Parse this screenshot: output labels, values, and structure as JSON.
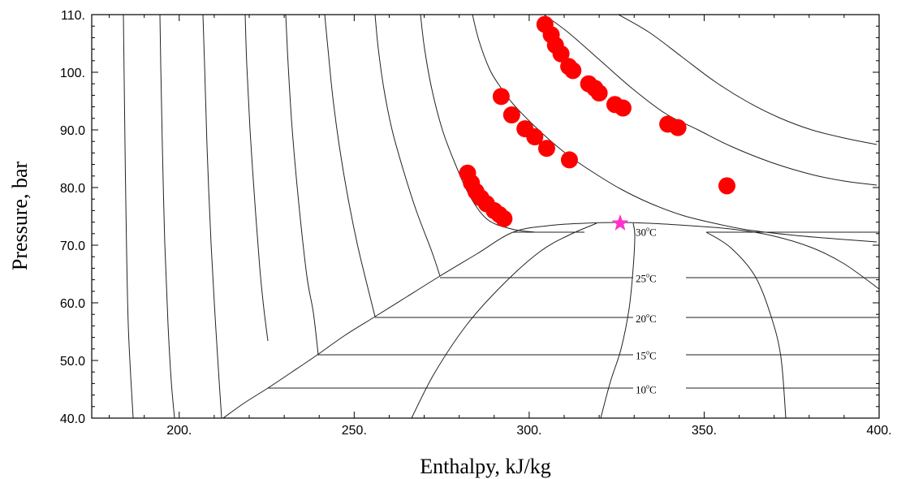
{
  "chart_data": {
    "type": "scatter",
    "title": "",
    "xlabel": "Enthalpy, kJ/kg",
    "ylabel": "Pressure, bar",
    "xlim": [
      175,
      400
    ],
    "ylim": [
      40,
      110
    ],
    "x_ticks": [
      {
        "value": 200,
        "label": "200."
      },
      {
        "value": 250,
        "label": "250."
      },
      {
        "value": 300,
        "label": "300."
      },
      {
        "value": 350,
        "label": "350."
      },
      {
        "value": 400,
        "label": "400."
      }
    ],
    "y_ticks": [
      {
        "value": 40,
        "label": "40.0"
      },
      {
        "value": 50,
        "label": "50.0"
      },
      {
        "value": 60,
        "label": "60.0"
      },
      {
        "value": 70,
        "label": "70.0"
      },
      {
        "value": 80,
        "label": "80.0"
      },
      {
        "value": 90,
        "label": "90.0"
      },
      {
        "value": 100,
        "label": "100."
      },
      {
        "value": 110,
        "label": "110."
      }
    ],
    "points_color": "#ff0000",
    "critical_point_color": "#ff33cc",
    "critical_point": {
      "x": 326,
      "y": 73.8
    },
    "isotherm_labels": [
      {
        "text": "30",
        "unit": "C",
        "y": 72.3
      },
      {
        "text": "25",
        "unit": "C",
        "y": 64.3
      },
      {
        "text": "20",
        "unit": "C",
        "y": 57.3
      },
      {
        "text": "15",
        "unit": "C",
        "y": 50.9
      },
      {
        "text": "10",
        "unit": "C",
        "y": 45.0
      }
    ],
    "series": [
      {
        "values": [
          {
            "x": 304.5,
            "y": 108.3
          },
          {
            "x": 306.3,
            "y": 106.5
          },
          {
            "x": 307.5,
            "y": 104.7
          },
          {
            "x": 309.1,
            "y": 103.2
          },
          {
            "x": 311.3,
            "y": 101.0
          },
          {
            "x": 312.5,
            "y": 100.3
          },
          {
            "x": 317.0,
            "y": 98.0
          },
          {
            "x": 318.8,
            "y": 97.2
          },
          {
            "x": 320.0,
            "y": 96.4
          },
          {
            "x": 324.5,
            "y": 94.4
          },
          {
            "x": 326.8,
            "y": 93.8
          },
          {
            "x": 339.6,
            "y": 91.0
          },
          {
            "x": 342.5,
            "y": 90.4
          }
        ]
      },
      {
        "values": [
          {
            "x": 292.0,
            "y": 95.8
          },
          {
            "x": 295.0,
            "y": 92.6
          },
          {
            "x": 298.8,
            "y": 90.2
          },
          {
            "x": 301.6,
            "y": 88.8
          },
          {
            "x": 305.0,
            "y": 86.8
          },
          {
            "x": 311.5,
            "y": 84.8
          },
          {
            "x": 356.5,
            "y": 80.3
          }
        ]
      },
      {
        "values": [
          {
            "x": 282.4,
            "y": 82.5
          },
          {
            "x": 283.5,
            "y": 80.8
          },
          {
            "x": 284.8,
            "y": 79.3
          },
          {
            "x": 286.2,
            "y": 78.2
          },
          {
            "x": 287.8,
            "y": 77.2
          },
          {
            "x": 290.0,
            "y": 76.0
          },
          {
            "x": 291.5,
            "y": 75.3
          },
          {
            "x": 292.8,
            "y": 74.6
          }
        ]
      }
    ],
    "isentropes": [
      [
        [
          152,
          18
        ],
        [
          153,
          100
        ],
        [
          155,
          250
        ],
        [
          158,
          400
        ],
        [
          164,
          515
        ]
      ],
      [
        [
          197,
          18
        ],
        [
          198,
          80
        ],
        [
          200,
          180
        ],
        [
          203,
          300
        ],
        [
          207,
          400
        ],
        [
          211,
          470
        ],
        [
          215,
          515
        ]
      ],
      [
        [
          250,
          18
        ],
        [
          252,
          80
        ],
        [
          255,
          180
        ],
        [
          260,
          300
        ],
        [
          265,
          390
        ],
        [
          270,
          470
        ],
        [
          273,
          515
        ]
      ],
      [
        [
          302,
          18
        ],
        [
          304,
          80
        ],
        [
          308,
          160
        ],
        [
          314,
          250
        ],
        [
          320,
          330
        ],
        [
          325,
          380
        ],
        [
          330,
          420
        ]
      ],
      [
        [
          352,
          18
        ],
        [
          355,
          80
        ],
        [
          360,
          160
        ],
        [
          368,
          250
        ],
        [
          378,
          340
        ],
        [
          386,
          385
        ],
        [
          392,
          437
        ]
      ],
      [
        [
          400,
          18
        ],
        [
          404,
          60
        ],
        [
          410,
          120
        ],
        [
          418,
          180
        ],
        [
          428,
          240
        ],
        [
          440,
          300
        ],
        [
          452,
          350
        ],
        [
          462,
          390
        ]
      ],
      [
        [
          462,
          18
        ],
        [
          466,
          60
        ],
        [
          473,
          110
        ],
        [
          483,
          160
        ],
        [
          497,
          210
        ],
        [
          513,
          260
        ],
        [
          532,
          310
        ],
        [
          542,
          340
        ]
      ],
      [
        [
          518,
          18
        ],
        [
          523,
          60
        ],
        [
          532,
          110
        ],
        [
          545,
          160
        ],
        [
          560,
          200
        ],
        [
          578,
          240
        ],
        [
          600,
          270
        ],
        [
          630,
          282
        ],
        [
          660,
          286
        ]
      ],
      [
        [
          582,
          18
        ],
        [
          590,
          50
        ],
        [
          603,
          85
        ],
        [
          615,
          105
        ],
        [
          632,
          128
        ],
        [
          655,
          152
        ],
        [
          680,
          175
        ],
        [
          705,
          195
        ],
        [
          735,
          215
        ],
        [
          765,
          233
        ],
        [
          800,
          250
        ],
        [
          840,
          265
        ],
        [
          880,
          275
        ],
        [
          920,
          283
        ],
        [
          980,
          290
        ],
        [
          1040,
          295
        ],
        [
          1080,
          298
        ]
      ],
      [
        [
          670,
          18
        ],
        [
          700,
          40
        ],
        [
          740,
          75
        ],
        [
          780,
          110
        ],
        [
          820,
          140
        ],
        [
          860,
          160
        ],
        [
          900,
          180
        ],
        [
          950,
          200
        ],
        [
          1000,
          215
        ],
        [
          1040,
          223
        ],
        [
          1080,
          228
        ]
      ],
      [
        [
          762,
          18
        ],
        [
          800,
          40
        ],
        [
          840,
          70
        ],
        [
          880,
          100
        ],
        [
          920,
          125
        ],
        [
          960,
          145
        ],
        [
          1000,
          160
        ],
        [
          1040,
          170
        ],
        [
          1080,
          178
        ]
      ]
    ],
    "sat_dome": [
      [
        275,
        515
      ],
      [
        300,
        497
      ],
      [
        330,
        478
      ],
      [
        360,
        458
      ],
      [
        391,
        437
      ],
      [
        425,
        413
      ],
      [
        462,
        390
      ],
      [
        502,
        365
      ],
      [
        542,
        340
      ],
      [
        587,
        313
      ],
      [
        632,
        286
      ],
      [
        675,
        278
      ],
      [
        720,
        275
      ],
      [
        760,
        274
      ],
      [
        800,
        275
      ],
      [
        850,
        278
      ],
      [
        900,
        282
      ],
      [
        950,
        290
      ],
      [
        1000,
        305
      ],
      [
        1040,
        325
      ],
      [
        1083,
        356
      ]
    ],
    "isotherms_horizontal": [
      [
        [
          632,
          286
        ],
        [
          720,
          286
        ]
      ],
      [
        [
          870,
          286
        ],
        [
          1083,
          286
        ]
      ],
      [
        [
          542,
          342
        ],
        [
          780,
          342
        ]
      ],
      [
        [
          845,
          342
        ],
        [
          1083,
          342
        ]
      ],
      [
        [
          462,
          391
        ],
        [
          780,
          391
        ]
      ],
      [
        [
          845,
          391
        ],
        [
          1083,
          391
        ]
      ],
      [
        [
          391,
          437
        ],
        [
          780,
          437
        ]
      ],
      [
        [
          845,
          437
        ],
        [
          1083,
          437
        ]
      ],
      [
        [
          330,
          478
        ],
        [
          780,
          478
        ]
      ],
      [
        [
          845,
          478
        ],
        [
          1083,
          478
        ]
      ]
    ],
    "other_curves": [
      [
        [
          507,
          515
        ],
        [
          535,
          460
        ],
        [
          575,
          400
        ],
        [
          620,
          350
        ],
        [
          665,
          310
        ],
        [
          700,
          290
        ],
        [
          735,
          275
        ]
      ],
      [
        [
          740,
          515
        ],
        [
          752,
          470
        ],
        [
          765,
          430
        ],
        [
          775,
          380
        ],
        [
          780,
          330
        ],
        [
          782,
          290
        ],
        [
          780,
          275
        ]
      ],
      [
        [
          870,
          286
        ],
        [
          900,
          305
        ],
        [
          930,
          340
        ],
        [
          950,
          390
        ],
        [
          962,
          440
        ],
        [
          968,
          515
        ]
      ]
    ]
  }
}
